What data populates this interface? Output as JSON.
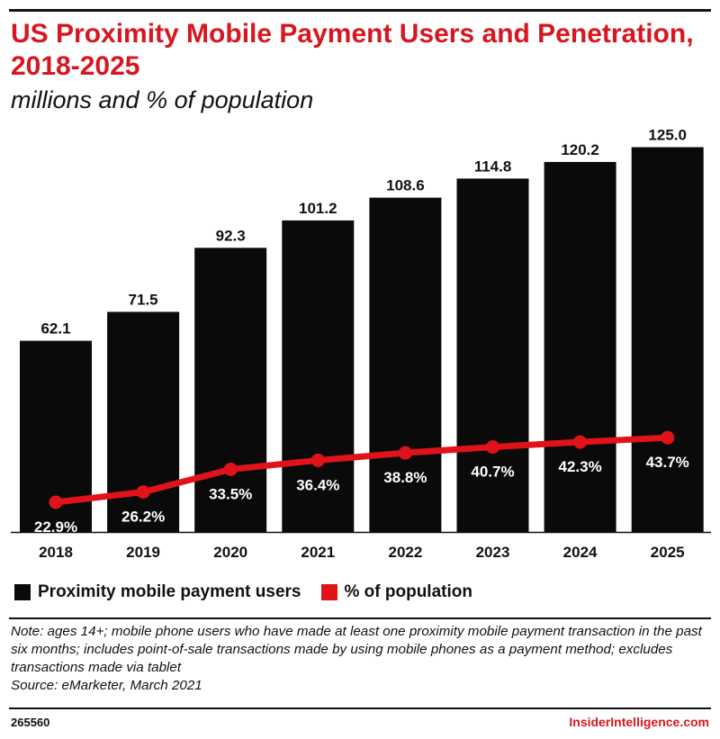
{
  "title": "US Proximity Mobile Payment Users and Penetration, 2018-2025",
  "subtitle": "millions and % of population",
  "colors": {
    "bar": "#0a0a0a",
    "line": "#e0131b",
    "brand": "#d7171f"
  },
  "legend": [
    {
      "label": "Proximity mobile payment users",
      "color": "#0a0a0a"
    },
    {
      "label": "% of population",
      "color": "#e0131b"
    }
  ],
  "note": "Note: ages 14+; mobile phone users who have made at least one proximity mobile payment transaction in the past six months; includes point-of-sale transactions made by using mobile phones as a payment method; excludes transactions made via tablet",
  "source": "Source: eMarketer, March 2021",
  "chart_id": "265560",
  "brand": "InsiderIntelligence.com",
  "chart_data": {
    "type": "bar",
    "categories": [
      "2018",
      "2019",
      "2020",
      "2021",
      "2022",
      "2023",
      "2024",
      "2025"
    ],
    "series": [
      {
        "name": "Proximity mobile payment users",
        "type": "bar",
        "values": [
          62.1,
          71.5,
          92.3,
          101.2,
          108.6,
          114.8,
          120.2,
          125.0
        ],
        "labels": [
          "62.1",
          "71.5",
          "92.3",
          "101.2",
          "108.6",
          "114.8",
          "120.2",
          "125.0"
        ]
      },
      {
        "name": "% of population",
        "type": "line",
        "values": [
          22.9,
          26.2,
          33.5,
          36.4,
          38.8,
          40.7,
          42.3,
          43.7
        ],
        "labels": [
          "22.9%",
          "26.2%",
          "33.5%",
          "36.4%",
          "38.8%",
          "40.7%",
          "42.3%",
          "43.7%"
        ]
      }
    ],
    "title": "US Proximity Mobile Payment Users and Penetration, 2018-2025",
    "ylabel": "",
    "xlabel": "",
    "grid": false,
    "legend_position": "bottom-left"
  }
}
